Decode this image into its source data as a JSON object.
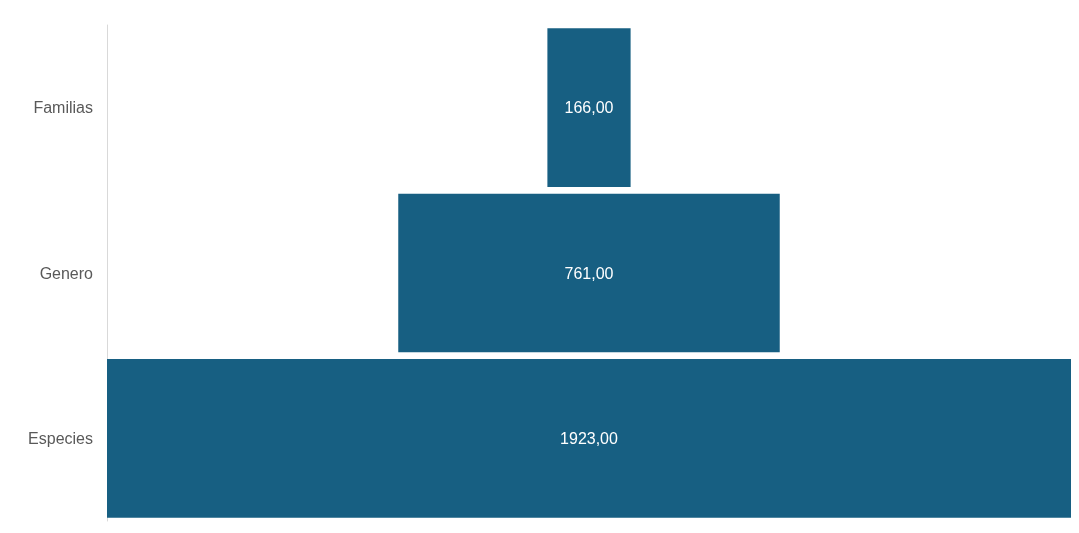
{
  "chart_data": {
    "type": "other",
    "categories": [
      "Familias",
      "Genero",
      "Especies"
    ],
    "values": [
      166,
      761,
      1923
    ],
    "value_labels": [
      "166,00",
      "761,00",
      "1923,00"
    ],
    "color": "#175f82"
  }
}
